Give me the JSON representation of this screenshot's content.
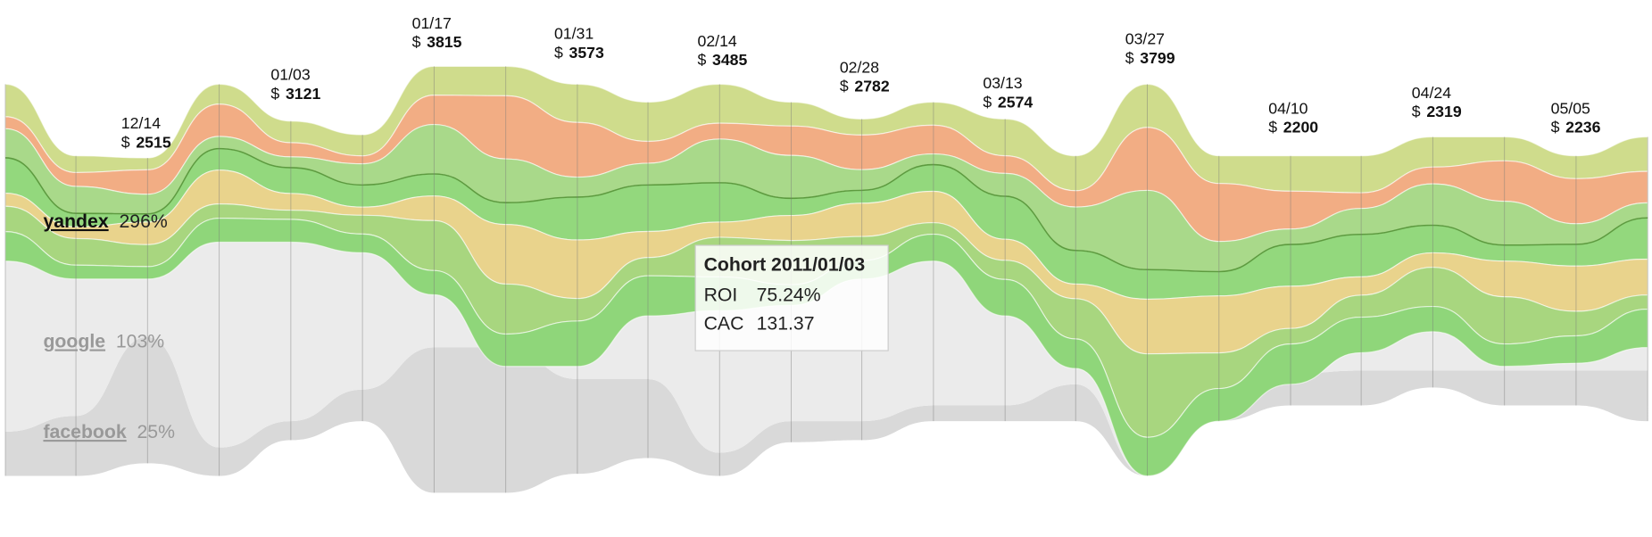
{
  "currency": "$",
  "dates": [
    {
      "date": "12/14",
      "total": 2515
    },
    {
      "date": "01/03",
      "total": 3121
    },
    {
      "date": "01/17",
      "total": 3815
    },
    {
      "date": "01/31",
      "total": 3573
    },
    {
      "date": "02/14",
      "total": 3485
    },
    {
      "date": "02/28",
      "total": 2782
    },
    {
      "date": "03/13",
      "total": 2574
    },
    {
      "date": "03/27",
      "total": 3799
    },
    {
      "date": "04/10",
      "total": 2200
    },
    {
      "date": "04/24",
      "total": 2319
    },
    {
      "date": "05/05",
      "total": 2236
    }
  ],
  "channels": [
    {
      "name": "yandex",
      "roi": "296%"
    },
    {
      "name": "google",
      "roi": "103%"
    },
    {
      "name": "facebook",
      "roi": "25%"
    }
  ],
  "tooltip": {
    "title": "Cohort 2011/01/03",
    "rows": [
      {
        "label": "ROI",
        "value": "75.24%"
      },
      {
        "label": "CAC",
        "value": "131.37"
      }
    ]
  }
}
